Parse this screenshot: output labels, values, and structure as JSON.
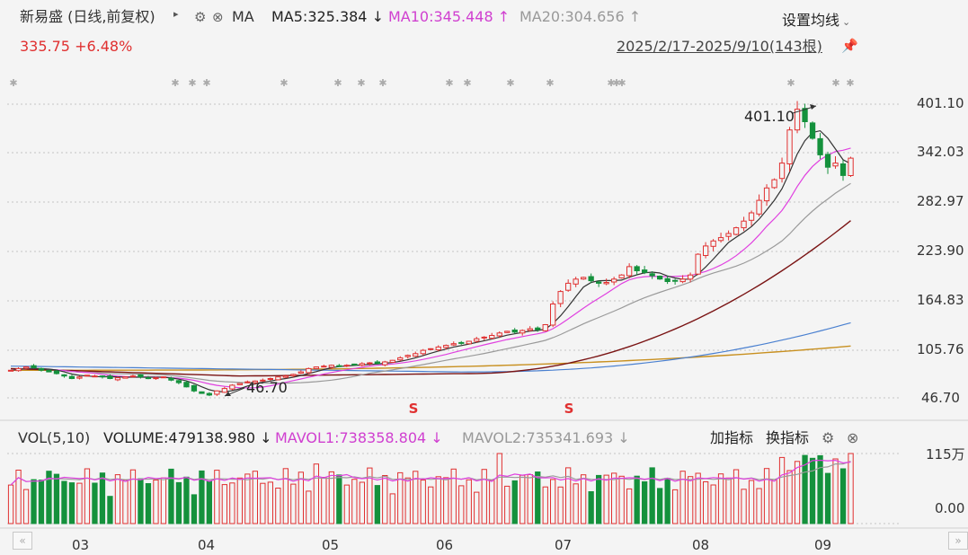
{
  "header": {
    "title": "新易盛 (日线,前复权)",
    "menu_arrow": "▸",
    "ma_label": "MA",
    "ma5": "MA5:325.384 ↓",
    "ma10": "MA10:345.448 ↑",
    "ma20": "MA20:304.656 ↑",
    "settings": "设置均线",
    "price": "335.75 +6.48%",
    "range": "2025/2/17-2025/9/10(143根)"
  },
  "icons": {
    "gear": "gear-icon",
    "close": "close-icon",
    "pin": "pin-icon",
    "chevron": "chevron-down-icon"
  },
  "colors": {
    "up": "#e03030",
    "down": "#14913c",
    "ma5": "#333333",
    "ma10": "#e040e0",
    "ma20": "#9a9a9a",
    "ma60": "#7a1414",
    "ma120": "#4a80d0",
    "ma250": "#c89020"
  },
  "y_axis": [
    "401.10",
    "342.03",
    "282.97",
    "223.90",
    "164.83",
    "105.76",
    "46.70"
  ],
  "x_axis": [
    "03",
    "04",
    "05",
    "06",
    "07",
    "08",
    "09"
  ],
  "annotations": {
    "high": "401.10",
    "low": "46.70",
    "marker": "S"
  },
  "volume_header": {
    "label": "VOL(5,10)",
    "volume": "VOLUME:479138.980 ↓",
    "mavol1": "MAVOL1:738358.804 ↓",
    "mavol2": "MAVOL2:735341.693 ↓",
    "add_indicator": "加指标",
    "swap_indicator": "换指标",
    "max": "115万",
    "zero": "0.00"
  },
  "chart_data": {
    "type": "candlestick",
    "x_range": [
      "2025/2/17",
      "2025/9/10"
    ],
    "count": 143,
    "ylim": [
      46.7,
      401.1
    ],
    "series_close_approx": [
      80,
      82,
      84,
      83,
      80,
      78,
      76,
      73,
      70,
      72,
      74,
      73,
      72,
      70,
      71,
      72,
      73,
      72,
      70,
      71,
      72,
      68,
      65,
      60,
      55,
      52,
      50,
      55,
      58,
      62,
      64,
      66,
      67,
      68,
      70,
      72,
      73,
      75,
      78,
      82,
      84,
      85,
      86,
      85,
      86,
      87,
      88,
      89,
      88,
      90,
      92,
      95,
      98,
      100,
      104,
      106,
      108,
      110,
      112,
      113,
      115,
      118,
      120,
      122,
      125,
      127,
      126,
      128,
      130,
      129,
      135,
      160,
      175,
      185,
      190,
      192,
      188,
      185,
      186,
      190,
      195,
      205,
      200,
      198,
      194,
      190,
      187,
      188,
      190,
      195,
      220,
      230,
      236,
      240,
      245,
      252,
      260,
      270,
      285,
      300,
      310,
      330,
      370,
      395,
      380,
      360,
      340,
      325,
      330,
      315,
      336
    ],
    "volume_ylim": [
      "0.00",
      "115万"
    ]
  }
}
